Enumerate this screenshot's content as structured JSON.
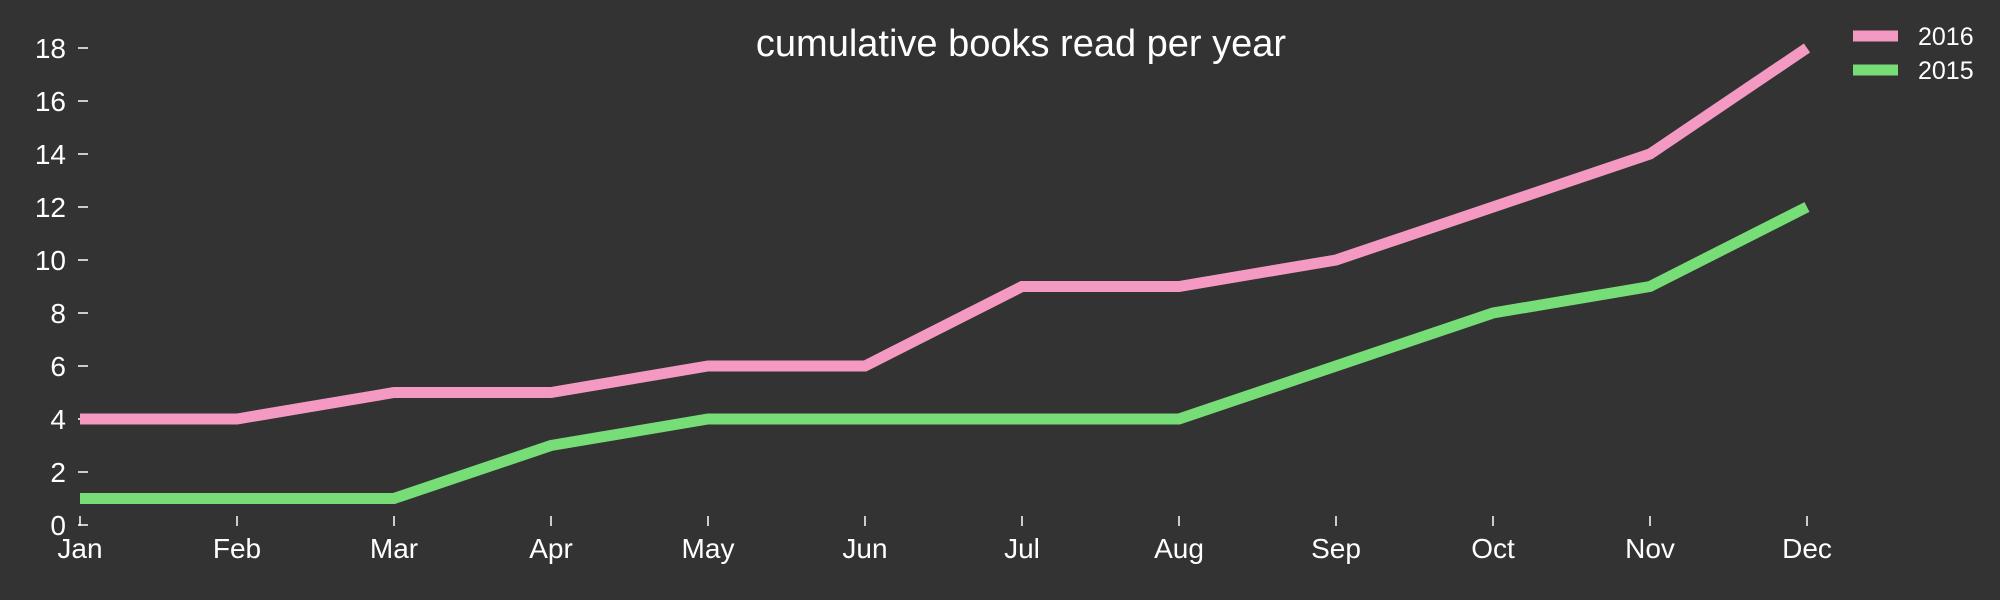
{
  "chart_data": {
    "type": "line",
    "title": "cumulative books read per year",
    "xlabel": "",
    "ylabel": "",
    "categories": [
      "Jan",
      "Feb",
      "Mar",
      "Apr",
      "May",
      "Jun",
      "Jul",
      "Aug",
      "Sep",
      "Oct",
      "Nov",
      "Dec"
    ],
    "ylim": [
      0,
      18
    ],
    "yticks": [
      0,
      2,
      4,
      6,
      8,
      10,
      12,
      14,
      16,
      18
    ],
    "grid": false,
    "legend_position": "top-right",
    "background_color": "#333333",
    "text_color": "#ffffff",
    "series": [
      {
        "name": "2016",
        "color": "#f49ac2",
        "values": [
          4,
          4,
          5,
          5,
          6,
          6,
          9,
          9,
          10,
          12,
          14,
          18
        ]
      },
      {
        "name": "2015",
        "color": "#77dd77",
        "values": [
          1,
          1,
          1,
          3,
          4,
          4,
          4,
          4,
          6,
          8,
          9,
          12
        ]
      }
    ]
  }
}
